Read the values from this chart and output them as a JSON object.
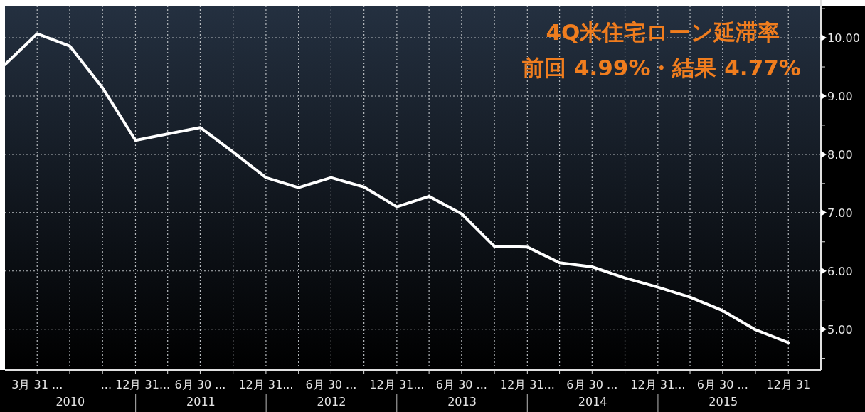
{
  "chart_data": {
    "type": "line",
    "title": "4Q米住宅ローン延滞率",
    "subtitle": "前回 4.99%・結果 4.77%",
    "x": [
      "2009-12-31",
      "2010-03-31",
      "2010-06-30",
      "2010-09-30",
      "2010-12-31",
      "2011-03-31",
      "2011-06-30",
      "2011-09-30",
      "2011-12-31",
      "2012-03-31",
      "2012-06-30",
      "2012-09-30",
      "2012-12-31",
      "2013-03-31",
      "2013-06-30",
      "2013-09-30",
      "2013-12-31",
      "2014-03-31",
      "2014-06-30",
      "2014-09-30",
      "2014-12-31",
      "2015-03-31",
      "2015-06-30",
      "2015-09-30",
      "2015-12-31"
    ],
    "series": [
      {
        "color": "#ffffff",
        "values": [
          9.54,
          10.07,
          9.86,
          9.14,
          8.24,
          8.35,
          8.46,
          8.04,
          7.6,
          7.43,
          7.6,
          7.44,
          7.1,
          7.28,
          6.98,
          6.42,
          6.41,
          6.14,
          6.07,
          5.88,
          5.72,
          5.55,
          5.32,
          4.99,
          4.77
        ]
      }
    ],
    "xlim": [
      "2009-12-31",
      "2016-03-31"
    ],
    "xticks": [
      {
        "value": "2010-03-31",
        "label": "3月 31 ..."
      },
      {
        "value": "2010-06-30",
        "label": null
      },
      {
        "value": "2010-09-30",
        "label": null
      },
      {
        "value": "2010-12-31",
        "label": "... 12月 31..."
      },
      {
        "value": "2011-03-31",
        "label": null
      },
      {
        "value": "2011-06-30",
        "label": "6月 30 ..."
      },
      {
        "value": "2011-09-30",
        "label": null
      },
      {
        "value": "2011-12-31",
        "label": "12月 31..."
      },
      {
        "value": "2012-03-31",
        "label": null
      },
      {
        "value": "2012-06-30",
        "label": "6月 30 ..."
      },
      {
        "value": "2012-09-30",
        "label": null
      },
      {
        "value": "2012-12-31",
        "label": "12月 31..."
      },
      {
        "value": "2013-03-31",
        "label": null
      },
      {
        "value": "2013-06-30",
        "label": "6月 30 ..."
      },
      {
        "value": "2013-09-30",
        "label": null
      },
      {
        "value": "2013-12-31",
        "label": "12月 31..."
      },
      {
        "value": "2014-03-31",
        "label": null
      },
      {
        "value": "2014-06-30",
        "label": "6月 30 ..."
      },
      {
        "value": "2014-09-30",
        "label": null
      },
      {
        "value": "2014-12-31",
        "label": "12月 31..."
      },
      {
        "value": "2015-03-31",
        "label": null
      },
      {
        "value": "2015-06-30",
        "label": "6月 30 ..."
      },
      {
        "value": "2015-09-30",
        "label": null
      },
      {
        "value": "2015-12-31",
        "label": "12月 31"
      }
    ],
    "ylim": [
      4.3,
      10.55
    ],
    "yticks": [
      {
        "value": 4.5,
        "label": null
      },
      {
        "value": 5,
        "label": "5.00"
      },
      {
        "value": 5.5,
        "label": null
      },
      {
        "value": 6,
        "label": "6.00"
      },
      {
        "value": 6.5,
        "label": null
      },
      {
        "value": 7,
        "label": "7.00"
      },
      {
        "value": 7.5,
        "label": null
      },
      {
        "value": 8,
        "label": "8.00"
      },
      {
        "value": 8.5,
        "label": null
      },
      {
        "value": 9,
        "label": "9.00"
      },
      {
        "value": 9.5,
        "label": null
      },
      {
        "value": 10,
        "label": "10.00"
      },
      {
        "value": 10.5,
        "label": null
      }
    ],
    "grid": true,
    "annotations": [
      "2010",
      "2011",
      "2012",
      "2013",
      "2014",
      "2015"
    ]
  }
}
